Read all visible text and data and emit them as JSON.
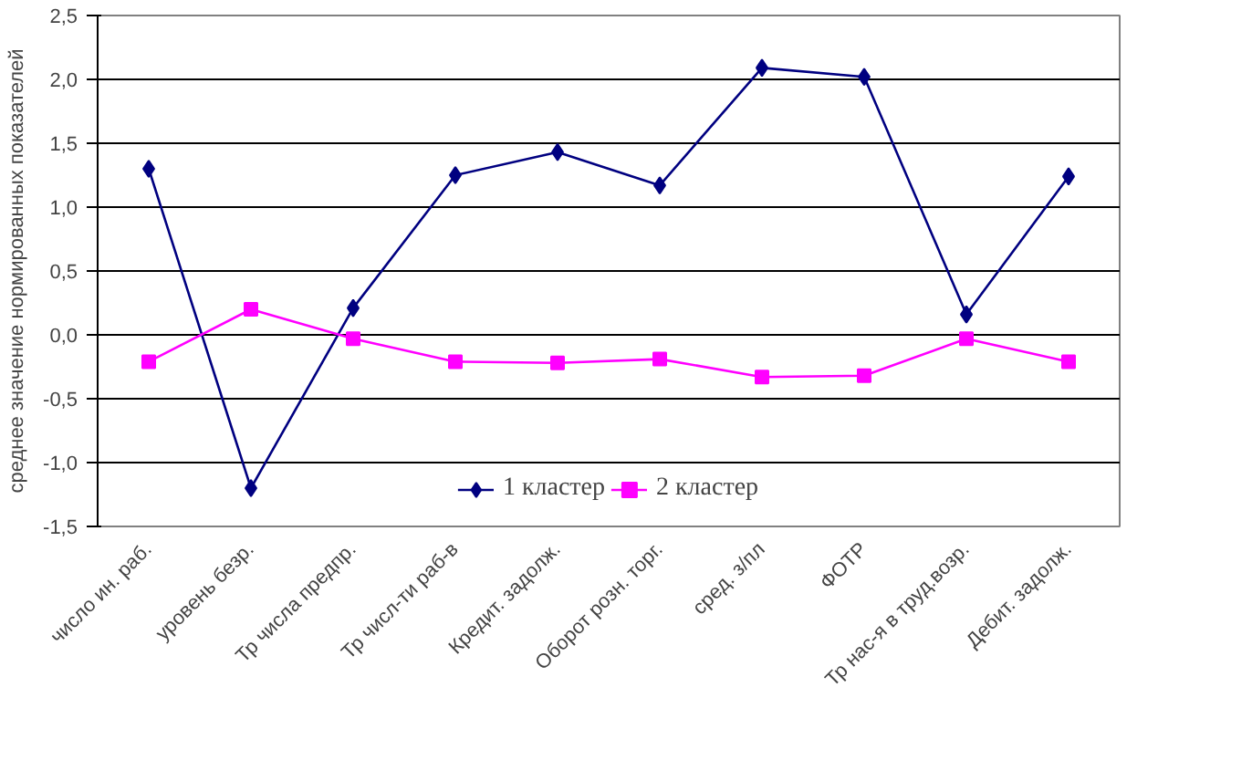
{
  "chart_data": {
    "type": "line",
    "ylabel": "среднее значение нормированных показателей",
    "categories": [
      "число ин. раб.",
      "уровень безр.",
      "Тр числа предпр.",
      "Тр числ-ти раб-в",
      "Кредит. задолж.",
      "Оборот розн. торг.",
      "сред. з/пл",
      "ФОТР",
      "Тр нас-я в труд.возр.",
      "Дебит. задолж."
    ],
    "series": [
      {
        "name": "1 кластер",
        "color": "#000080",
        "marker": "diamond",
        "values": [
          1.3,
          -1.2,
          0.21,
          1.25,
          1.43,
          1.17,
          2.09,
          2.02,
          0.16,
          1.24
        ]
      },
      {
        "name": "2 кластер",
        "color": "#ff00ff",
        "marker": "square",
        "values": [
          -0.21,
          0.2,
          -0.03,
          -0.21,
          -0.22,
          -0.19,
          -0.33,
          -0.32,
          -0.03,
          -0.21
        ]
      }
    ],
    "ylim": [
      -1.5,
      2.5
    ],
    "yticks": [
      {
        "value": -1.5,
        "label": "-1,5"
      },
      {
        "value": -1.0,
        "label": "-1,0"
      },
      {
        "value": -0.5,
        "label": "-0,5"
      },
      {
        "value": 0.0,
        "label": "0,0"
      },
      {
        "value": 0.5,
        "label": "0,5"
      },
      {
        "value": 1.0,
        "label": "1,0"
      },
      {
        "value": 1.5,
        "label": "1,5"
      },
      {
        "value": 2.0,
        "label": "2,0"
      },
      {
        "value": 2.5,
        "label": "2,5"
      }
    ],
    "grid": "y",
    "legend": "bottom",
    "line_style": "solid"
  }
}
